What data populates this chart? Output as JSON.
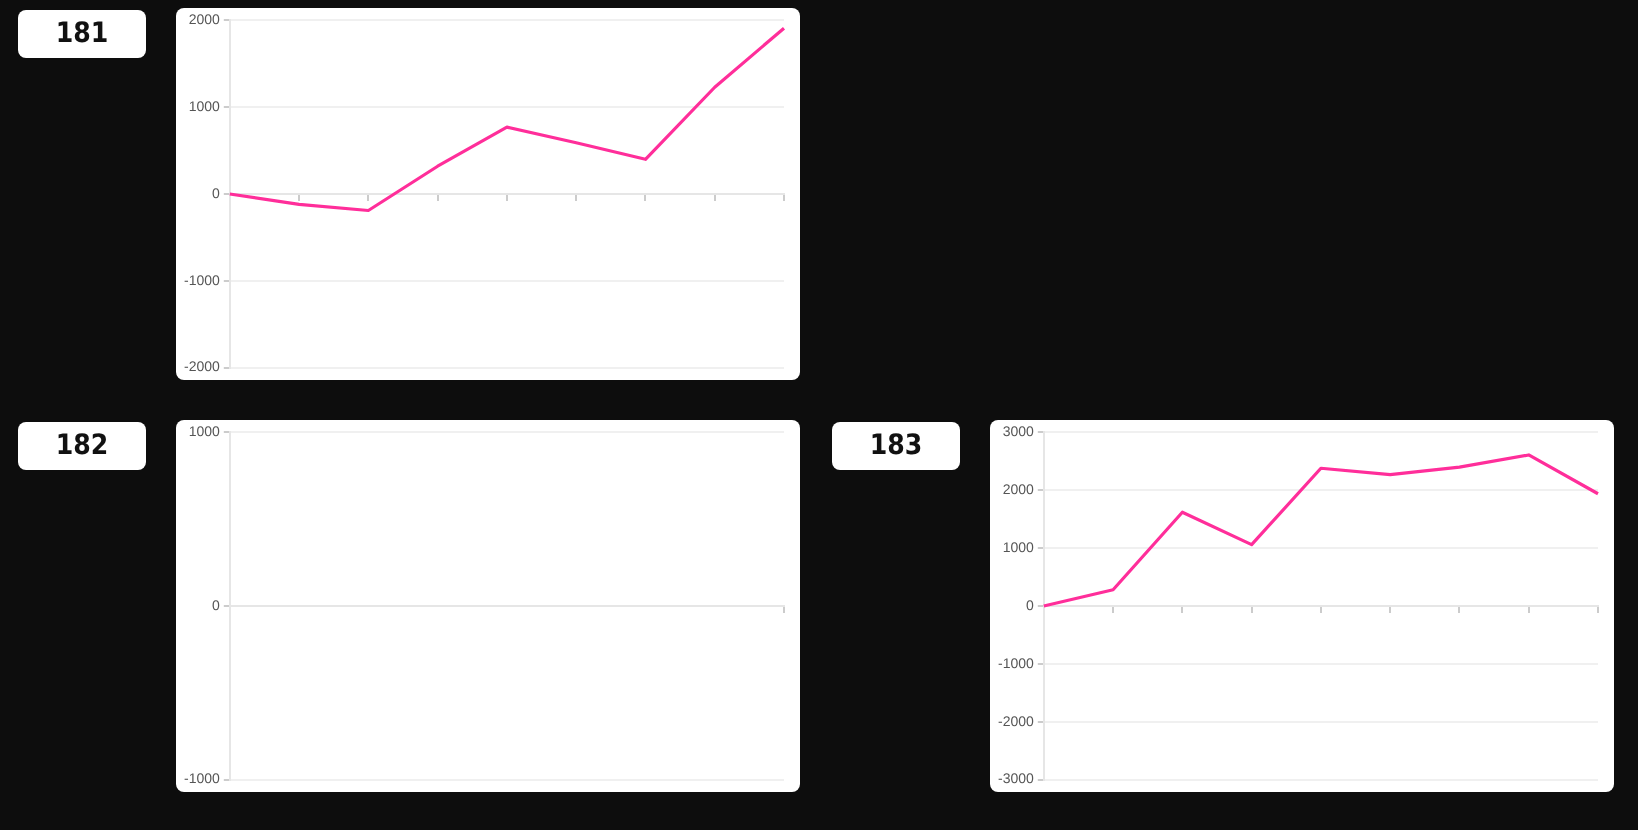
{
  "chart_data": [
    {
      "type": "line",
      "title": "181",
      "categories": [
        null,
        null,
        null,
        null,
        null,
        null,
        null,
        null,
        null
      ],
      "ylim": [
        -2000,
        2000
      ],
      "yticks": [
        -2000,
        -1000,
        0,
        1000,
        2000
      ],
      "grid": "y",
      "tick_labels": "y",
      "series": [
        {
          "color": "#ff2e9a",
          "values": [
            0,
            -120,
            -190,
            320,
            770,
            590,
            400,
            1230,
            1910
          ]
        }
      ]
    },
    {
      "type": "line",
      "title": "182",
      "categories": [
        null,
        null
      ],
      "ylim": [
        -1000,
        1000
      ],
      "yticks": [
        -1000,
        0,
        1000
      ],
      "grid": "y",
      "tick_labels": "y"
    },
    {
      "type": "line",
      "title": "183",
      "categories": [
        null,
        null,
        null,
        null,
        null,
        null,
        null,
        null,
        null
      ],
      "ylim": [
        -3000,
        3000
      ],
      "yticks": [
        -3000,
        -2000,
        -1000,
        0,
        1000,
        2000,
        3000
      ],
      "grid": "y",
      "tick_labels": "y",
      "series": [
        {
          "color": "#ff2e9a",
          "values": [
            0,
            280,
            1620,
            1060,
            2380,
            2270,
            2400,
            2610,
            1940
          ]
        }
      ]
    }
  ]
}
